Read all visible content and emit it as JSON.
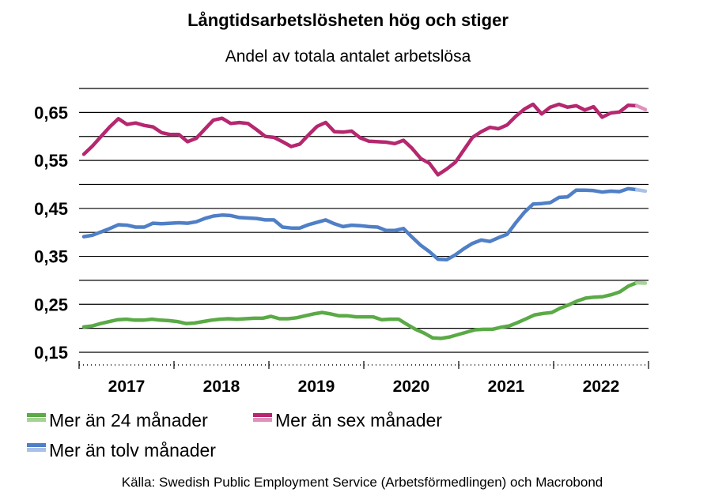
{
  "chart_data": {
    "type": "line",
    "title": "Långtidsarbetslösheten hög och stiger",
    "subtitle": "Andel av totala antalet arbetslösa",
    "source": "Källa: Swedish Public Employment Service (Arbetsförmedlingen) och Macrobond",
    "y_ticks": [
      "0,65",
      "0,55",
      "0,45",
      "0,35",
      "0,25",
      "0,15"
    ],
    "y_tick_values": [
      0.65,
      0.55,
      0.45,
      0.35,
      0.25,
      0.15
    ],
    "ylim": [
      0.15,
      0.7
    ],
    "xlim": [
      2016.5,
      2022.5
    ],
    "x_ticks": [
      "2017",
      "2018",
      "2019",
      "2020",
      "2021",
      "2022"
    ],
    "grid": true,
    "legend_position": "bottom",
    "series": [
      {
        "name": "Mer än 24 månader",
        "color": "#5aaa46",
        "projection_color": "#a5d394",
        "values": [
          0.203,
          0.205,
          0.21,
          0.214,
          0.218,
          0.219,
          0.217,
          0.217,
          0.219,
          0.217,
          0.216,
          0.214,
          0.21,
          0.211,
          0.214,
          0.217,
          0.219,
          0.22,
          0.219,
          0.22,
          0.221,
          0.221,
          0.225,
          0.22,
          0.22,
          0.222,
          0.226,
          0.23,
          0.233,
          0.23,
          0.226,
          0.226,
          0.224,
          0.224,
          0.224,
          0.218,
          0.219,
          0.219,
          0.208,
          0.198,
          0.19,
          0.18,
          0.179,
          0.182,
          0.187,
          0.192,
          0.197,
          0.198,
          0.198,
          0.202,
          0.205,
          0.212,
          0.22,
          0.228,
          0.231,
          0.233,
          0.242,
          0.249,
          0.257,
          0.263,
          0.265,
          0.266,
          0.27,
          0.276,
          0.288,
          0.295,
          0.294
        ]
      },
      {
        "name": "Mer än sex månader",
        "color": "#b5276f",
        "projection_color": "#e090bc",
        "values": [
          0.563,
          0.58,
          0.6,
          0.62,
          0.637,
          0.625,
          0.628,
          0.623,
          0.62,
          0.608,
          0.604,
          0.604,
          0.589,
          0.596,
          0.615,
          0.634,
          0.638,
          0.627,
          0.629,
          0.627,
          0.614,
          0.6,
          0.598,
          0.589,
          0.579,
          0.584,
          0.603,
          0.621,
          0.629,
          0.61,
          0.609,
          0.611,
          0.597,
          0.59,
          0.589,
          0.588,
          0.585,
          0.592,
          0.575,
          0.554,
          0.544,
          0.52,
          0.532,
          0.546,
          0.572,
          0.598,
          0.61,
          0.619,
          0.616,
          0.624,
          0.642,
          0.657,
          0.667,
          0.647,
          0.661,
          0.667,
          0.661,
          0.664,
          0.655,
          0.662,
          0.64,
          0.649,
          0.651,
          0.665,
          0.664,
          0.656
        ]
      },
      {
        "name": "Mer än tolv månader",
        "color": "#4f7fc6",
        "projection_color": "#a9c1e6",
        "values": [
          0.391,
          0.394,
          0.401,
          0.408,
          0.416,
          0.415,
          0.411,
          0.411,
          0.419,
          0.418,
          0.419,
          0.42,
          0.419,
          0.422,
          0.429,
          0.434,
          0.436,
          0.435,
          0.431,
          0.43,
          0.429,
          0.426,
          0.426,
          0.411,
          0.409,
          0.409,
          0.416,
          0.421,
          0.426,
          0.418,
          0.412,
          0.415,
          0.414,
          0.412,
          0.411,
          0.404,
          0.404,
          0.408,
          0.39,
          0.373,
          0.36,
          0.344,
          0.343,
          0.353,
          0.366,
          0.377,
          0.384,
          0.381,
          0.389,
          0.396,
          0.42,
          0.442,
          0.459,
          0.46,
          0.462,
          0.473,
          0.474,
          0.488,
          0.488,
          0.487,
          0.484,
          0.486,
          0.485,
          0.491,
          0.489,
          0.486
        ]
      }
    ]
  }
}
